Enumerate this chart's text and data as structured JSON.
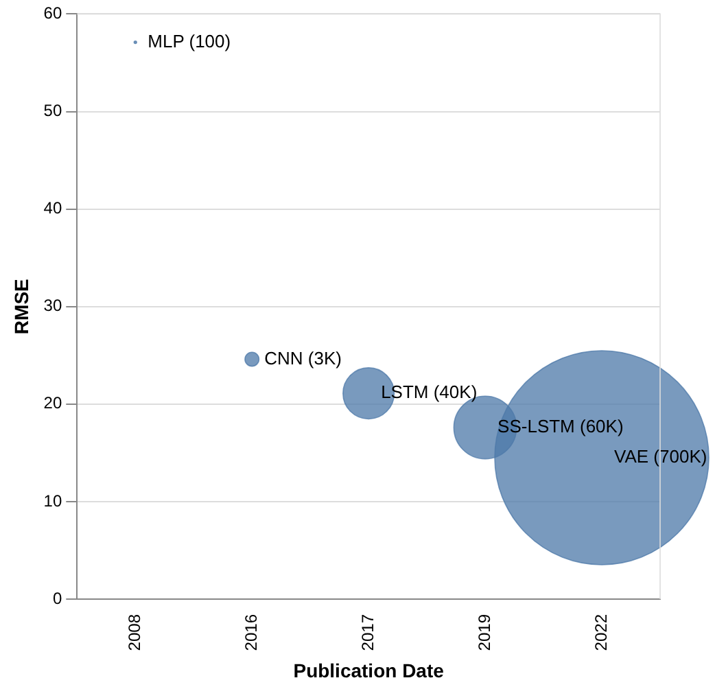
{
  "chart_data": {
    "type": "bubble",
    "xlabel": "Publication Date",
    "ylabel": "RMSE",
    "categories": [
      "2008",
      "2016",
      "2017",
      "2019",
      "2022"
    ],
    "values": [
      57.1,
      24.6,
      21.1,
      17.6,
      14.5
    ],
    "sizes": [
      0.000143,
      0.00429,
      0.0571,
      0.0857,
      1
    ],
    "color": "#4c78a8",
    "ylim": [
      0,
      60
    ],
    "yticks": [
      0,
      10,
      20,
      30,
      40,
      50,
      60
    ],
    "grid": "y",
    "annotations": [
      {
        "text": "MLP (100)",
        "x": "2008",
        "y": 57.1
      },
      {
        "text": "CNN (3K)",
        "x": "2016",
        "y": 24.6
      },
      {
        "text": "LSTM (40K)",
        "x": "2017",
        "y": 21.1
      },
      {
        "text": "SS-LSTM (60K)",
        "x": "2019",
        "y": 17.6
      },
      {
        "text": "VAE (700K)",
        "x": "2022",
        "y": 14.5
      }
    ]
  }
}
